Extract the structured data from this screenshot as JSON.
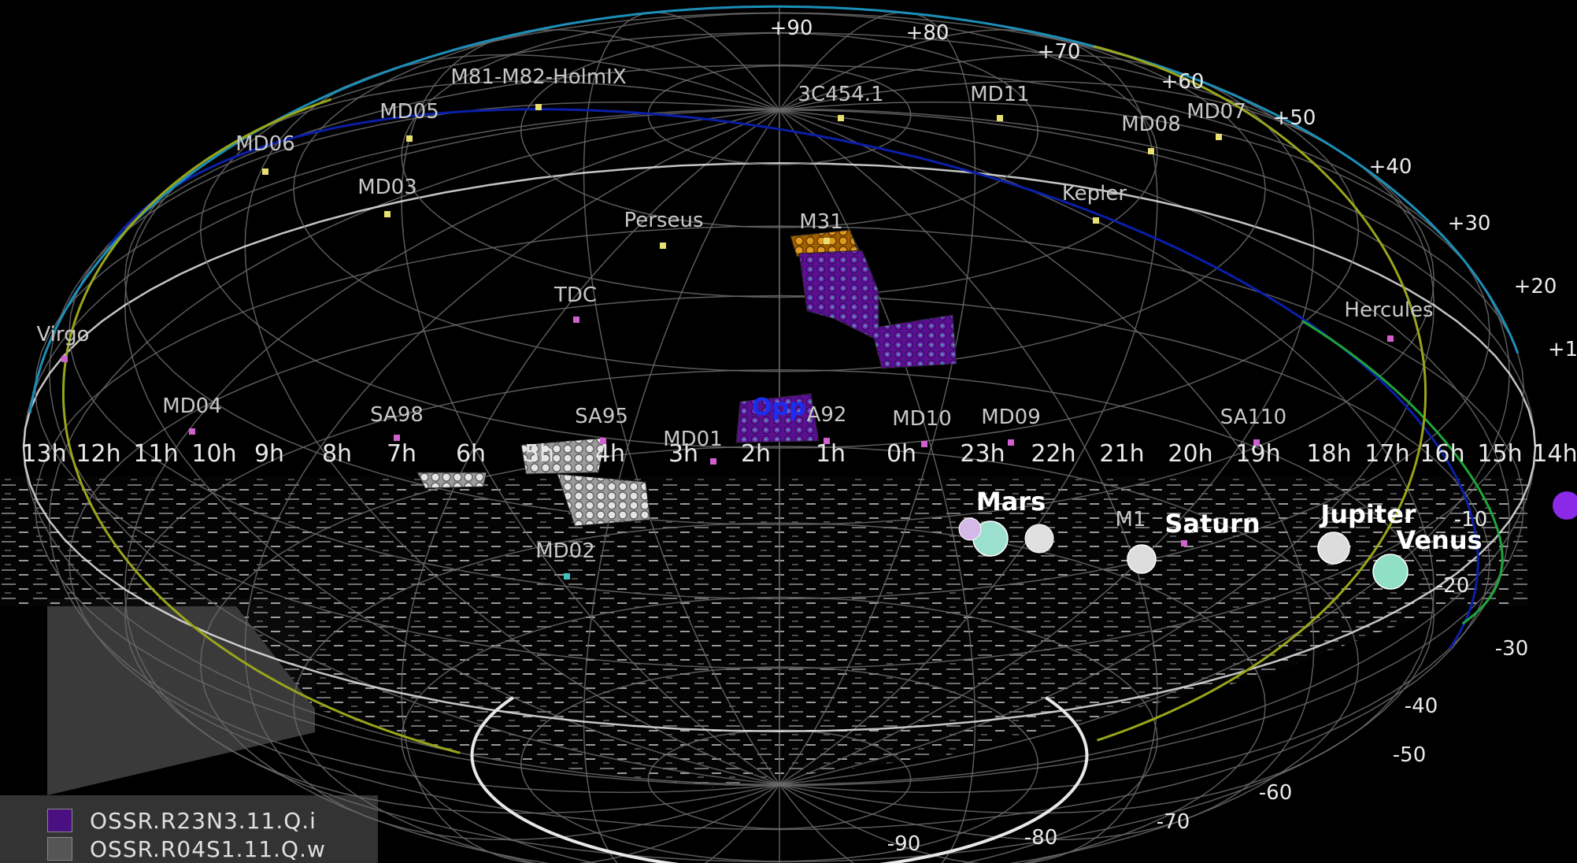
{
  "colors": {
    "background": "#000000",
    "grid": "#6a6a6a",
    "ecliptic": "#0a1fa8",
    "galactic_plane": "#1b8fb8",
    "horizon": "#9aa51a",
    "survey_i": "#6a1ba8",
    "survey_w": "#c8c8c8",
    "m31_gold": "#d98a10",
    "green_track": "#1ea63a",
    "south_circle": "#e8e8e8"
  },
  "dec_labels": [
    "+90",
    "+80",
    "+70",
    "+60",
    "+50",
    "+40",
    "+30",
    "+20",
    "+1",
    "-10",
    "-20",
    "-30",
    "-40",
    "-50",
    "-60",
    "-70",
    "-80",
    "-90"
  ],
  "ra_labels": [
    "13h",
    "12h",
    "11h",
    "10h",
    "9h",
    "8h",
    "7h",
    "6h",
    "5h",
    "4h",
    "3h",
    "2h",
    "1h",
    "0h",
    "23h",
    "22h",
    "21h",
    "20h",
    "19h",
    "18h",
    "17h",
    "16h",
    "15h",
    "14h"
  ],
  "fields": [
    {
      "name": "M81-M82-HolmIX",
      "color": "#e8e070"
    },
    {
      "name": "MD05",
      "color": "#e8e070"
    },
    {
      "name": "MD06",
      "color": "#e8e070"
    },
    {
      "name": "MD03",
      "color": "#e8e070"
    },
    {
      "name": "3C454.1",
      "color": "#e8e070"
    },
    {
      "name": "MD11",
      "color": "#e8e070"
    },
    {
      "name": "MD08",
      "color": "#e8e070"
    },
    {
      "name": "MD07",
      "color": "#e8e070"
    },
    {
      "name": "Kepler",
      "color": "#e8e070"
    },
    {
      "name": "Perseus",
      "color": "#e8e070"
    },
    {
      "name": "M31",
      "color": "#e8e070"
    },
    {
      "name": "TDC",
      "color": "#d060d0"
    },
    {
      "name": "Virgo",
      "color": "#d060d0"
    },
    {
      "name": "Hercules",
      "color": "#d060d0"
    },
    {
      "name": "MD04",
      "color": "#d060d0"
    },
    {
      "name": "SA98",
      "color": "#d060d0"
    },
    {
      "name": "SA95",
      "color": "#d060d0"
    },
    {
      "name": "MD01",
      "color": "#d060d0"
    },
    {
      "name": "A92",
      "color": "#d060d0"
    },
    {
      "name": "MD10",
      "color": "#d060d0"
    },
    {
      "name": "MD09",
      "color": "#d060d0"
    },
    {
      "name": "SA110",
      "color": "#d060d0"
    },
    {
      "name": "MD02",
      "color": "#40c0c0"
    },
    {
      "name": "M1",
      "color": "#d060d0"
    }
  ],
  "planets": [
    {
      "name": "Mars",
      "color": "#9be0cf"
    },
    {
      "name": "Saturn",
      "color": "#dddddd"
    },
    {
      "name": "Jupiter",
      "color": "#dcdcdc"
    },
    {
      "name": "Venus",
      "color": "#8fe0c4"
    }
  ],
  "opp_label": "Opp",
  "legend": [
    {
      "label": "OSSR.R23N3.11.Q.i",
      "color": "#4a0f80"
    },
    {
      "label": "OSSR.R04S1.11.Q.w",
      "color": "#555555"
    }
  ]
}
